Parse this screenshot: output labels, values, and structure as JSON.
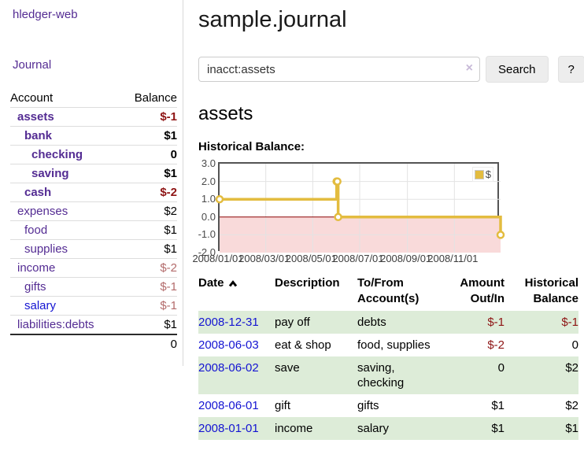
{
  "colors": {
    "link_purple": "#542c93",
    "link_blue": "#1414d2",
    "negative_strong": "#8e1414",
    "negative_muted": "#b36b6b",
    "row_stripe_green": "#ddecd8",
    "series_gold": "#e3bc3f",
    "zero_line_red": "#8b0000",
    "negative_region_pink": "#f9dada"
  },
  "sidebar": {
    "brand": "hledger-web",
    "journal_link": "Journal",
    "columns": {
      "account": "Account",
      "balance": "Balance"
    },
    "accounts": [
      {
        "name": "assets",
        "depth": 1,
        "bold": true,
        "link": "purple",
        "balance": "$-1",
        "balance_style": "neg-strong"
      },
      {
        "name": "bank",
        "depth": 2,
        "bold": true,
        "link": "purple",
        "balance": "$1",
        "balance_style": "plain"
      },
      {
        "name": "checking",
        "depth": 3,
        "bold": true,
        "link": "purple",
        "balance": "0",
        "balance_style": "plain"
      },
      {
        "name": "saving",
        "depth": 3,
        "bold": true,
        "link": "purple",
        "balance": "$1",
        "balance_style": "plain"
      },
      {
        "name": "cash",
        "depth": 2,
        "bold": true,
        "link": "purple",
        "balance": "$-2",
        "balance_style": "neg-strong"
      },
      {
        "name": "expenses",
        "depth": 1,
        "bold": false,
        "link": "purple",
        "balance": "$2",
        "balance_style": "plain"
      },
      {
        "name": "food",
        "depth": 2,
        "bold": false,
        "link": "purple",
        "balance": "$1",
        "balance_style": "plain"
      },
      {
        "name": "supplies",
        "depth": 2,
        "bold": false,
        "link": "purple",
        "balance": "$1",
        "balance_style": "plain"
      },
      {
        "name": "income",
        "depth": 1,
        "bold": false,
        "link": "purple",
        "balance": "$-2",
        "balance_style": "neg-muted"
      },
      {
        "name": "gifts",
        "depth": 2,
        "bold": false,
        "link": "purple",
        "balance": "$-1",
        "balance_style": "neg-muted"
      },
      {
        "name": "salary",
        "depth": 2,
        "bold": false,
        "link": "blue",
        "balance": "$-1",
        "balance_style": "neg-muted"
      },
      {
        "name": "liabilities:debts",
        "depth": 1,
        "bold": false,
        "link": "purple",
        "balance": "$1",
        "balance_style": "plain"
      }
    ],
    "total": "0"
  },
  "main": {
    "title": "sample.journal",
    "search": {
      "value": "inacct:assets",
      "clear_icon": "×",
      "button_label": "Search",
      "help_label": "?"
    },
    "account_heading": "assets",
    "section_heading": "Historical Balance:"
  },
  "chart_data": {
    "type": "line",
    "title": "Historical Balance:",
    "step": true,
    "series": [
      {
        "name": "$",
        "color": "#e3bc3f",
        "points": [
          [
            "2008-01-01",
            1
          ],
          [
            "2008-06-01",
            2
          ],
          [
            "2008-06-02",
            2
          ],
          [
            "2008-06-03",
            0
          ],
          [
            "2008-12-31",
            -1
          ]
        ]
      }
    ],
    "x_range": [
      "2008-01-01",
      "2008-12-31"
    ],
    "ylim": [
      -2,
      3
    ],
    "y_ticks": [
      "3.0",
      "2.0",
      "1.0",
      "0.0",
      "-1.0",
      "-2.0"
    ],
    "x_tick_labels": [
      "2008/01/01",
      "2008/03/01",
      "2008/05/01",
      "2008/07/01",
      "2008/09/01",
      "2008/11/01"
    ],
    "legend": {
      "label": "$",
      "position": "top-right"
    },
    "grid": true,
    "zero_line_color": "#8b0000",
    "negative_region_color": "#f9dada"
  },
  "register": {
    "columns": [
      "Date",
      "Description",
      "To/From Account(s)",
      "Amount Out/In",
      "Historical Balance"
    ],
    "sort": {
      "column": "Date",
      "direction": "ascending"
    },
    "rows": [
      {
        "date": "2008-12-31",
        "description": "pay off",
        "accounts": "debts",
        "amount": "$-1",
        "amount_negative": true,
        "balance": "$-1",
        "balance_negative": true
      },
      {
        "date": "2008-06-03",
        "description": "eat & shop",
        "accounts": "food, supplies",
        "amount": "$-2",
        "amount_negative": true,
        "balance": "0",
        "balance_negative": false
      },
      {
        "date": "2008-06-02",
        "description": "save",
        "accounts": "saving,\nchecking",
        "amount": "0",
        "amount_negative": false,
        "balance": "$2",
        "balance_negative": false
      },
      {
        "date": "2008-06-01",
        "description": "gift",
        "accounts": "gifts",
        "amount": "$1",
        "amount_negative": false,
        "balance": "$2",
        "balance_negative": false
      },
      {
        "date": "2008-01-01",
        "description": "income",
        "accounts": "salary",
        "amount": "$1",
        "amount_negative": false,
        "balance": "$1",
        "balance_negative": false
      }
    ]
  }
}
